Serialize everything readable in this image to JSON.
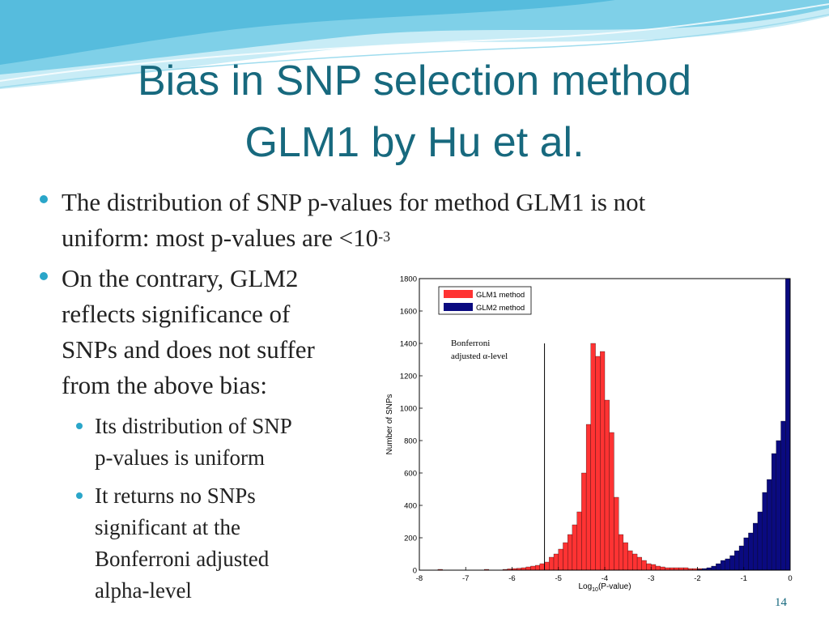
{
  "slide": {
    "title_line1": "Bias in SNP selection method",
    "title_line2": "GLM1 by Hu et al.",
    "number": "14",
    "theme_colors": {
      "title": "#17697e",
      "bullet": "#2aa6c9",
      "wave": "#5fc3e0"
    }
  },
  "bullets": [
    {
      "line1": "The distribution of SNP p-values for method GLM1 is not",
      "line2_text": "uniform: most p-values are <10",
      "line2_sup": "-3"
    },
    {
      "lines": [
        "On the contrary, GLM2",
        "reflects significance of",
        "SNPs and does not suffer",
        "from the above bias:"
      ],
      "sub": [
        {
          "lines": [
            "Its distribution of SNP",
            "p-values is uniform"
          ]
        },
        {
          "lines": [
            "It returns no SNPs",
            "significant at the",
            "Bonferroni adjusted",
            "alpha-level"
          ]
        }
      ]
    }
  ],
  "chart_data": {
    "type": "bar",
    "xlabel_main": "Log",
    "xlabel_sub": "10",
    "xlabel_rest": "(P-value)",
    "ylabel": "Number of SNPs",
    "xlim": [
      -8,
      0
    ],
    "ylim": [
      0,
      1800
    ],
    "xticks": [
      "-8",
      "-7",
      "-6",
      "-5",
      "-4",
      "-3",
      "-2",
      "-1",
      "0"
    ],
    "yticks": [
      "0",
      "200",
      "400",
      "600",
      "800",
      "1000",
      "1200",
      "1400",
      "1600",
      "1800"
    ],
    "bin_width": 0.1,
    "legend": [
      "GLM1 method",
      "GLM2 method"
    ],
    "legend_position": "top-left",
    "annotation_line1": "Bonferroni",
    "annotation_line2": "adjusted α-level",
    "bonferroni_x": -5.3,
    "series": [
      {
        "name": "GLM1 method",
        "color": "#ff3333",
        "x": [
          -7.6,
          -6.6,
          -6.2,
          -6.1,
          -6.0,
          -5.9,
          -5.8,
          -5.7,
          -5.6,
          -5.5,
          -5.4,
          -5.3,
          -5.2,
          -5.1,
          -5.0,
          -4.9,
          -4.8,
          -4.7,
          -4.6,
          -4.5,
          -4.4,
          -4.3,
          -4.2,
          -4.1,
          -4.0,
          -3.9,
          -3.8,
          -3.7,
          -3.6,
          -3.5,
          -3.4,
          -3.3,
          -3.2,
          -3.1,
          -3.0,
          -2.9,
          -2.8,
          -2.7,
          -2.6,
          -2.5,
          -2.4,
          -2.3,
          -2.2,
          -2.1,
          -2.0,
          -1.9,
          -1.8
        ],
        "values": [
          5,
          5,
          5,
          8,
          10,
          12,
          15,
          20,
          25,
          30,
          40,
          50,
          80,
          100,
          130,
          170,
          220,
          280,
          360,
          600,
          900,
          1400,
          1320,
          1350,
          1050,
          850,
          450,
          220,
          170,
          120,
          100,
          80,
          60,
          40,
          35,
          25,
          20,
          15,
          15,
          15,
          15,
          15,
          10,
          10,
          10,
          8,
          5
        ]
      },
      {
        "name": "GLM2 method",
        "color": "#0a0a80",
        "x": [
          -2.0,
          -1.9,
          -1.8,
          -1.7,
          -1.6,
          -1.5,
          -1.4,
          -1.3,
          -1.2,
          -1.1,
          -1.0,
          -0.9,
          -0.8,
          -0.7,
          -0.6,
          -0.5,
          -0.4,
          -0.3,
          -0.2,
          -0.1
        ],
        "values": [
          5,
          10,
          15,
          25,
          40,
          60,
          70,
          90,
          120,
          150,
          200,
          230,
          290,
          360,
          480,
          560,
          720,
          800,
          920,
          1800
        ]
      }
    ]
  }
}
